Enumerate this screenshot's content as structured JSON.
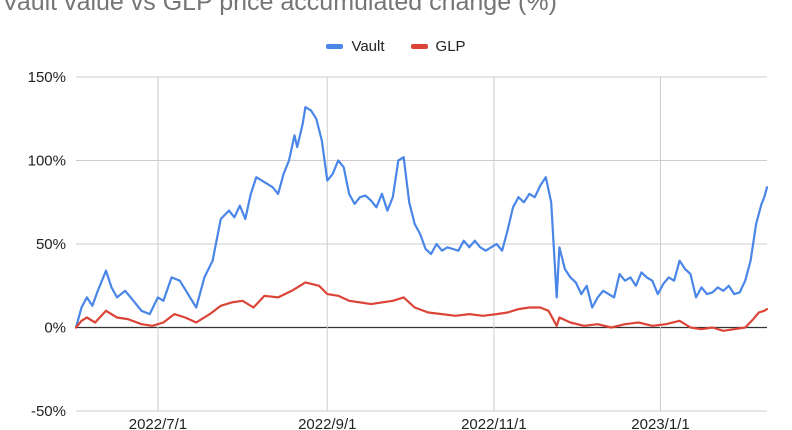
{
  "chart_data": {
    "type": "line",
    "title": "Vault value vs GLP price accumulated change (%)",
    "xlabel": "",
    "ylabel": "",
    "x_start": "2022-06-01",
    "x_end": "2023-02-09",
    "ylim": [
      -50,
      150
    ],
    "y_ticks": [
      {
        "value": 150,
        "label": "150%"
      },
      {
        "value": 100,
        "label": "100%"
      },
      {
        "value": 50,
        "label": "50%"
      },
      {
        "value": 0,
        "label": "0%"
      },
      {
        "value": -50,
        "label": "-50%"
      }
    ],
    "x_ticks": [
      {
        "date": "2022-07-01",
        "label": "2022/7/1"
      },
      {
        "date": "2022-09-01",
        "label": "2022/9/1"
      },
      {
        "date": "2022-11-01",
        "label": "2022/11/1"
      },
      {
        "date": "2023-01-01",
        "label": "2023/1/1"
      }
    ],
    "grid": true,
    "legend_position": "top",
    "series": [
      {
        "name": "Vault",
        "color": "#4a86e8",
        "points": [
          [
            "2022-06-01",
            0
          ],
          [
            "2022-06-03",
            12
          ],
          [
            "2022-06-05",
            18
          ],
          [
            "2022-06-07",
            13
          ],
          [
            "2022-06-09",
            22
          ],
          [
            "2022-06-12",
            34
          ],
          [
            "2022-06-14",
            24
          ],
          [
            "2022-06-16",
            18
          ],
          [
            "2022-06-19",
            22
          ],
          [
            "2022-06-22",
            16
          ],
          [
            "2022-06-25",
            10
          ],
          [
            "2022-06-28",
            8
          ],
          [
            "2022-07-01",
            18
          ],
          [
            "2022-07-03",
            16
          ],
          [
            "2022-07-06",
            30
          ],
          [
            "2022-07-09",
            28
          ],
          [
            "2022-07-12",
            20
          ],
          [
            "2022-07-15",
            12
          ],
          [
            "2022-07-18",
            30
          ],
          [
            "2022-07-21",
            40
          ],
          [
            "2022-07-24",
            65
          ],
          [
            "2022-07-27",
            70
          ],
          [
            "2022-07-29",
            66
          ],
          [
            "2022-07-31",
            73
          ],
          [
            "2022-08-02",
            65
          ],
          [
            "2022-08-04",
            80
          ],
          [
            "2022-08-06",
            90
          ],
          [
            "2022-08-09",
            87
          ],
          [
            "2022-08-12",
            84
          ],
          [
            "2022-08-14",
            80
          ],
          [
            "2022-08-16",
            92
          ],
          [
            "2022-08-18",
            100
          ],
          [
            "2022-08-20",
            115
          ],
          [
            "2022-08-21",
            108
          ],
          [
            "2022-08-23",
            122
          ],
          [
            "2022-08-24",
            132
          ],
          [
            "2022-08-26",
            130
          ],
          [
            "2022-08-28",
            125
          ],
          [
            "2022-08-30",
            112
          ],
          [
            "2022-09-01",
            88
          ],
          [
            "2022-09-03",
            92
          ],
          [
            "2022-09-05",
            100
          ],
          [
            "2022-09-07",
            96
          ],
          [
            "2022-09-09",
            80
          ],
          [
            "2022-09-11",
            74
          ],
          [
            "2022-09-13",
            78
          ],
          [
            "2022-09-15",
            79
          ],
          [
            "2022-09-17",
            76
          ],
          [
            "2022-09-19",
            72
          ],
          [
            "2022-09-21",
            80
          ],
          [
            "2022-09-23",
            70
          ],
          [
            "2022-09-25",
            78
          ],
          [
            "2022-09-27",
            100
          ],
          [
            "2022-09-29",
            102
          ],
          [
            "2022-10-01",
            75
          ],
          [
            "2022-10-03",
            62
          ],
          [
            "2022-10-05",
            56
          ],
          [
            "2022-10-07",
            47
          ],
          [
            "2022-10-09",
            44
          ],
          [
            "2022-10-11",
            50
          ],
          [
            "2022-10-13",
            46
          ],
          [
            "2022-10-15",
            48
          ],
          [
            "2022-10-17",
            47
          ],
          [
            "2022-10-19",
            46
          ],
          [
            "2022-10-21",
            52
          ],
          [
            "2022-10-23",
            48
          ],
          [
            "2022-10-25",
            52
          ],
          [
            "2022-10-27",
            48
          ],
          [
            "2022-10-29",
            46
          ],
          [
            "2022-10-31",
            48
          ],
          [
            "2022-11-02",
            50
          ],
          [
            "2022-11-04",
            46
          ],
          [
            "2022-11-06",
            58
          ],
          [
            "2022-11-08",
            72
          ],
          [
            "2022-11-10",
            78
          ],
          [
            "2022-11-12",
            75
          ],
          [
            "2022-11-14",
            80
          ],
          [
            "2022-11-16",
            78
          ],
          [
            "2022-11-18",
            85
          ],
          [
            "2022-11-20",
            90
          ],
          [
            "2022-11-22",
            75
          ],
          [
            "2022-11-24",
            18
          ],
          [
            "2022-11-25",
            48
          ],
          [
            "2022-11-27",
            35
          ],
          [
            "2022-11-29",
            30
          ],
          [
            "2022-12-01",
            27
          ],
          [
            "2022-12-03",
            20
          ],
          [
            "2022-12-05",
            25
          ],
          [
            "2022-12-07",
            12
          ],
          [
            "2022-12-09",
            18
          ],
          [
            "2022-12-11",
            22
          ],
          [
            "2022-12-13",
            20
          ],
          [
            "2022-12-15",
            18
          ],
          [
            "2022-12-17",
            32
          ],
          [
            "2022-12-19",
            28
          ],
          [
            "2022-12-21",
            30
          ],
          [
            "2022-12-23",
            25
          ],
          [
            "2022-12-25",
            33
          ],
          [
            "2022-12-27",
            30
          ],
          [
            "2022-12-29",
            28
          ],
          [
            "2022-12-31",
            20
          ],
          [
            "2023-01-02",
            26
          ],
          [
            "2023-01-04",
            30
          ],
          [
            "2023-01-06",
            28
          ],
          [
            "2023-01-08",
            40
          ],
          [
            "2023-01-10",
            35
          ],
          [
            "2023-01-12",
            32
          ],
          [
            "2023-01-14",
            18
          ],
          [
            "2023-01-16",
            24
          ],
          [
            "2023-01-18",
            20
          ],
          [
            "2023-01-20",
            21
          ],
          [
            "2023-01-22",
            24
          ],
          [
            "2023-01-24",
            22
          ],
          [
            "2023-01-26",
            25
          ],
          [
            "2023-01-28",
            20
          ],
          [
            "2023-01-30",
            21
          ],
          [
            "2023-02-01",
            28
          ],
          [
            "2023-02-03",
            40
          ],
          [
            "2023-02-05",
            62
          ],
          [
            "2023-02-07",
            74
          ],
          [
            "2023-02-08",
            78
          ],
          [
            "2023-02-09",
            84
          ]
        ]
      },
      {
        "name": "GLP",
        "color": "#db4437",
        "points": [
          [
            "2022-06-01",
            0
          ],
          [
            "2022-06-03",
            4
          ],
          [
            "2022-06-05",
            6
          ],
          [
            "2022-06-08",
            3
          ],
          [
            "2022-06-12",
            10
          ],
          [
            "2022-06-16",
            6
          ],
          [
            "2022-06-20",
            5
          ],
          [
            "2022-06-25",
            2
          ],
          [
            "2022-06-29",
            1
          ],
          [
            "2022-07-03",
            3
          ],
          [
            "2022-07-07",
            8
          ],
          [
            "2022-07-11",
            6
          ],
          [
            "2022-07-15",
            3
          ],
          [
            "2022-07-20",
            8
          ],
          [
            "2022-07-24",
            13
          ],
          [
            "2022-07-28",
            15
          ],
          [
            "2022-08-01",
            16
          ],
          [
            "2022-08-05",
            12
          ],
          [
            "2022-08-09",
            19
          ],
          [
            "2022-08-14",
            18
          ],
          [
            "2022-08-19",
            22
          ],
          [
            "2022-08-24",
            27
          ],
          [
            "2022-08-29",
            25
          ],
          [
            "2022-09-01",
            20
          ],
          [
            "2022-09-05",
            19
          ],
          [
            "2022-09-09",
            16
          ],
          [
            "2022-09-13",
            15
          ],
          [
            "2022-09-17",
            14
          ],
          [
            "2022-09-21",
            15
          ],
          [
            "2022-09-25",
            16
          ],
          [
            "2022-09-29",
            18
          ],
          [
            "2022-10-03",
            12
          ],
          [
            "2022-10-08",
            9
          ],
          [
            "2022-10-13",
            8
          ],
          [
            "2022-10-18",
            7
          ],
          [
            "2022-10-23",
            8
          ],
          [
            "2022-10-28",
            7
          ],
          [
            "2022-11-02",
            8
          ],
          [
            "2022-11-06",
            9
          ],
          [
            "2022-11-10",
            11
          ],
          [
            "2022-11-14",
            12
          ],
          [
            "2022-11-18",
            12
          ],
          [
            "2022-11-21",
            10
          ],
          [
            "2022-11-24",
            1
          ],
          [
            "2022-11-25",
            6
          ],
          [
            "2022-11-29",
            3
          ],
          [
            "2022-12-04",
            1
          ],
          [
            "2022-12-09",
            2
          ],
          [
            "2022-12-14",
            0
          ],
          [
            "2022-12-19",
            2
          ],
          [
            "2022-12-24",
            3
          ],
          [
            "2022-12-29",
            1
          ],
          [
            "2023-01-03",
            2
          ],
          [
            "2023-01-08",
            4
          ],
          [
            "2023-01-12",
            0
          ],
          [
            "2023-01-16",
            -1
          ],
          [
            "2023-01-20",
            0
          ],
          [
            "2023-01-24",
            -2
          ],
          [
            "2023-01-28",
            -1
          ],
          [
            "2023-02-01",
            0
          ],
          [
            "2023-02-04",
            5
          ],
          [
            "2023-02-06",
            9
          ],
          [
            "2023-02-08",
            10
          ],
          [
            "2023-02-09",
            11
          ]
        ]
      }
    ]
  }
}
